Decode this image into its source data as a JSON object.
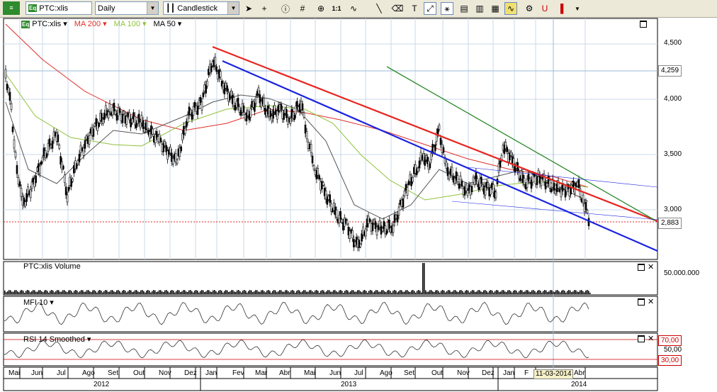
{
  "toolbar": {
    "symbol": "PTC:xlis",
    "period": "Daily",
    "chart_type": "Candlestick",
    "zoom_label": "1:1",
    "tools": [
      "cursor-icon",
      "crosshair-icon",
      "info-icon",
      "grid-icon",
      "zoom-icon",
      "ratio-label",
      "wave-icon",
      "line-icon",
      "eraser-icon",
      "trendline-icon",
      "pattern-icon",
      "text-icon",
      "chart-a-icon",
      "chart-b-icon",
      "chart-c-icon",
      "indicator-icon",
      "magnet-icon",
      "bar-icon",
      "more-icon"
    ]
  },
  "price_panel": {
    "symbol_label": "PTC:xlis",
    "ma200_label": "MA 200",
    "ma100_label": "MA 100",
    "ma50_label": "MA 50",
    "ma200_color": "#e0302a",
    "ma100_color": "#8fc23a",
    "ma50_color": "#555555",
    "axis_labels": [
      "4,500",
      "4,000",
      "3,500",
      "3,000"
    ],
    "last_high_tag": "4,259",
    "last_price_tag": "2,883"
  },
  "volume_panel": {
    "label": "PTC:xlis Volume",
    "axis_label": "50.000.000"
  },
  "mfi_panel": {
    "label": "MFI 10"
  },
  "rsi_panel": {
    "label": "RSI 14 Smoothed",
    "upper": "70,00",
    "mid": "50,00",
    "lower": "30,00"
  },
  "time_axis": {
    "months": [
      "Mai",
      "Jun",
      "Jul",
      "Ago",
      "Set",
      "Out",
      "Nov",
      "Dez",
      "Jan",
      "Fev",
      "Mar",
      "Abr",
      "Mai",
      "Jun",
      "Jul",
      "Ago",
      "Set",
      "Out",
      "Nov",
      "Dez",
      "Jan",
      "F",
      "Abr"
    ],
    "years": [
      "2012",
      "2013",
      "2014"
    ],
    "cursor_date": "11-03-2014"
  },
  "colors": {
    "trend_red": "#e8231e",
    "trend_blue": "#1b23e0",
    "trend_green": "#2a8a2a"
  }
}
